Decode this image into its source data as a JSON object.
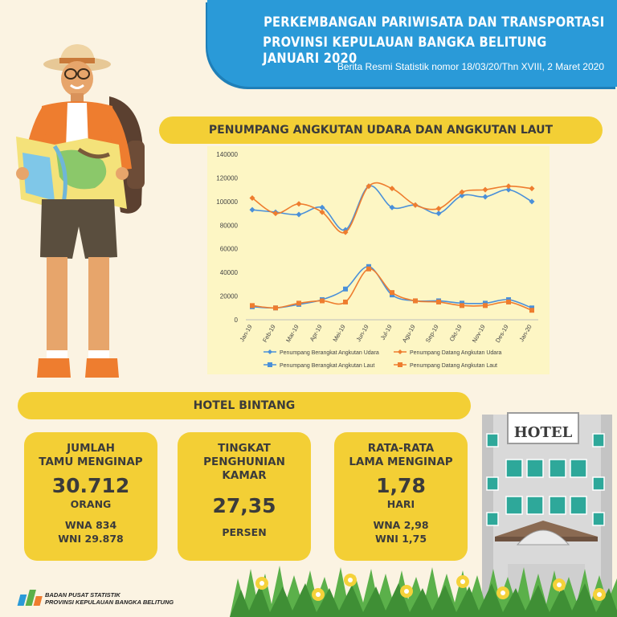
{
  "header": {
    "title_line1": "PERKEMBANGAN PARIWISATA DAN TRANSPORTASI",
    "title_line2": "PROVINSI KEPULAUAN BANGKA BELITUNG JANUARI 2020",
    "subtitle": "Berita Resmi Statistik nomor 18/03/20/Thn XVIII, 2 Maret 2020"
  },
  "colors": {
    "header_blue": "#2a9ad8",
    "banner_yellow": "#f3cf35",
    "series_blue": "#4a90d9",
    "series_orange": "#ee7d2f"
  },
  "chart_section": {
    "banner": "PENUMPANG ANGKUTAN UDARA DAN ANGKUTAN LAUT"
  },
  "chart_data": {
    "type": "line",
    "categories": [
      "Jan-19",
      "Feb-19",
      "Mar-19",
      "Apr-19",
      "Mei-19",
      "Jun-19",
      "Jul-19",
      "Agu-19",
      "Sep-19",
      "Okt-19",
      "Nov-19",
      "Des-19",
      "Jan-20"
    ],
    "yticks": [
      "0",
      "20000",
      "40000",
      "60000",
      "80000",
      "100000",
      "120000",
      "140000"
    ],
    "ylim": [
      0,
      140000
    ],
    "legend_placement": "bottom",
    "series": [
      {
        "name": "Penumpang Berangkat Angkutan Udara",
        "color": "#4a90d9",
        "marker": "diamond",
        "values": [
          93000,
          91000,
          89000,
          95000,
          76000,
          113000,
          95000,
          97000,
          90000,
          105000,
          104000,
          110000,
          100000
        ]
      },
      {
        "name": "Penumpang Datang Angkutan Udara",
        "color": "#ee7d2f",
        "marker": "diamond",
        "values": [
          103000,
          90000,
          98000,
          91000,
          74000,
          113000,
          111000,
          97000,
          94000,
          108000,
          110000,
          113000,
          111000
        ]
      },
      {
        "name": "Penumpang Berangkat Angkutan Laut",
        "color": "#4a90d9",
        "marker": "square",
        "values": [
          11000,
          10000,
          13000,
          17000,
          26000,
          45000,
          21000,
          16000,
          16000,
          14000,
          14000,
          17000,
          10000
        ]
      },
      {
        "name": "Penumpang Datang Angkutan Laut",
        "color": "#ee7d2f",
        "marker": "square",
        "values": [
          12000,
          10000,
          14000,
          16000,
          15000,
          43000,
          23000,
          16000,
          15000,
          12000,
          12000,
          15000,
          8000
        ]
      }
    ]
  },
  "hotel": {
    "banner": "HOTEL BINTANG",
    "sign": "HOTEL",
    "cards": [
      {
        "title1": "JUMLAH",
        "title2": "TAMU MENGINAP",
        "value": "30.712",
        "unit": "ORANG",
        "line1": "WNA 834",
        "line2": "WNI 29.878"
      },
      {
        "title1": "TINGKAT",
        "title2": "PENGHUNIAN",
        "title3": "KAMAR",
        "value": "27,35",
        "unit": "PERSEN"
      },
      {
        "title1": "RATA-RATA",
        "title2": "LAMA MENGINAP",
        "value": "1,78",
        "unit": "HARI",
        "line1": "WNA 2,98",
        "line2": "WNI 1,75"
      }
    ]
  },
  "footer": {
    "org_line1": "BADAN PUSAT STATISTIK",
    "org_line2": "PROVINSI KEPULAUAN BANGKA BELITUNG"
  }
}
